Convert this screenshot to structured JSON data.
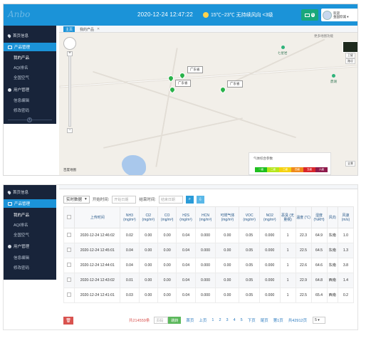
{
  "top": {
    "datetime": "2020-12-24  12:47:22",
    "weather": "15℃~23℃  无持续风向  <3级",
    "mail_count": "6",
    "user_line1": "欢迎",
    "user_line2": "金国欣诚 ▾",
    "sidebar": {
      "home": "首页信息",
      "product_mgmt": "产品管理",
      "my_product": "我的产品",
      "aqi": "AQI排名",
      "all_air": "全国空气",
      "user_mgmt": "用户管理",
      "info_edit": "信息编辑",
      "change_pwd": "修改密码"
    },
    "tabs": [
      "主页",
      "我的产品"
    ],
    "map": {
      "labels": [
        "广东省",
        "广东省",
        "广东省"
      ],
      "poi": [
        "七星岩",
        "鼎湖"
      ],
      "legend_title": "气体综合参数",
      "legend_levels": [
        "一级",
        "二级",
        "三级",
        "四级",
        "五级",
        "六级"
      ],
      "legend_colors": [
        "#1fbf1f",
        "#b6e61c",
        "#f5d20f",
        "#f08a1a",
        "#d9262b",
        "#8e1a4b"
      ],
      "side_labels": [
        "卫星",
        "路况",
        "全景"
      ],
      "top_right_note": "更多地图功能",
      "baidu": "百度地图"
    }
  },
  "bottom": {
    "sidebar": {
      "home": "首页信息",
      "product_mgmt": "产品管理",
      "my_product": "我的产品",
      "aqi": "AQI排名",
      "all_air": "全国空气",
      "user_mgmt": "用户管理",
      "info_edit": "信息编辑",
      "change_pwd": "修改密码"
    },
    "toolbar": {
      "mode": "实时数据",
      "start_label": "开始时间:",
      "start_placeholder": "开始日期",
      "end_label": "结束时间:",
      "end_placeholder": "结束日期"
    },
    "columns": [
      "上传时间",
      "NH3 (mg/m³)",
      "Cl2 (mg/m³)",
      "CO (mg/m³)",
      "H2S (mg/m³)",
      "HCN (mg/m³)",
      "可燃气体 (mg/m³)",
      "VOC (mg/m³)",
      "NO2 (mg/m³)",
      "恶臭 (无量纲)",
      "温度 (℃)",
      "湿度 (%RH)",
      "风向",
      "风速 (m/s)"
    ],
    "rows": [
      [
        "2020-12-24 12:46:02",
        "0.02",
        "0.00",
        "0.00",
        "0.04",
        "0.000",
        "0.00",
        "0.05",
        "0.000",
        "1",
        "22.3",
        "64.9",
        "东南",
        "1.0"
      ],
      [
        "2020-12-24 12:45:01",
        "0.04",
        "0.00",
        "0.00",
        "0.04",
        "0.000",
        "0.00",
        "0.05",
        "0.000",
        "1",
        "22.5",
        "64.5",
        "东南",
        "1.3"
      ],
      [
        "2020-12-24 12:44:01",
        "0.04",
        "0.00",
        "0.00",
        "0.04",
        "0.000",
        "0.00",
        "0.05",
        "0.000",
        "1",
        "22.6",
        "64.6",
        "东南",
        "3.8"
      ],
      [
        "2020-12-24 12:43:02",
        "0.01",
        "0.00",
        "0.00",
        "0.04",
        "0.000",
        "0.00",
        "0.05",
        "0.000",
        "1",
        "22.9",
        "64.8",
        "西南",
        "1.4"
      ],
      [
        "2020-12-24 12:41:01",
        "0.03",
        "0.00",
        "0.00",
        "0.04",
        "0.000",
        "0.00",
        "0.05",
        "0.000",
        "1",
        "22.5",
        "65.4",
        "西南",
        "0.2"
      ]
    ],
    "pager": {
      "total": "共214559条",
      "page_placeholder": "页码",
      "go": "跳转",
      "first": "首页",
      "prev": "上页",
      "pages": [
        "1",
        "2",
        "3",
        "4",
        "5"
      ],
      "next": "下页",
      "last": "尾页",
      "current": "第1页",
      "total_pages": "共42912页",
      "page_size": "5 ▾"
    }
  }
}
